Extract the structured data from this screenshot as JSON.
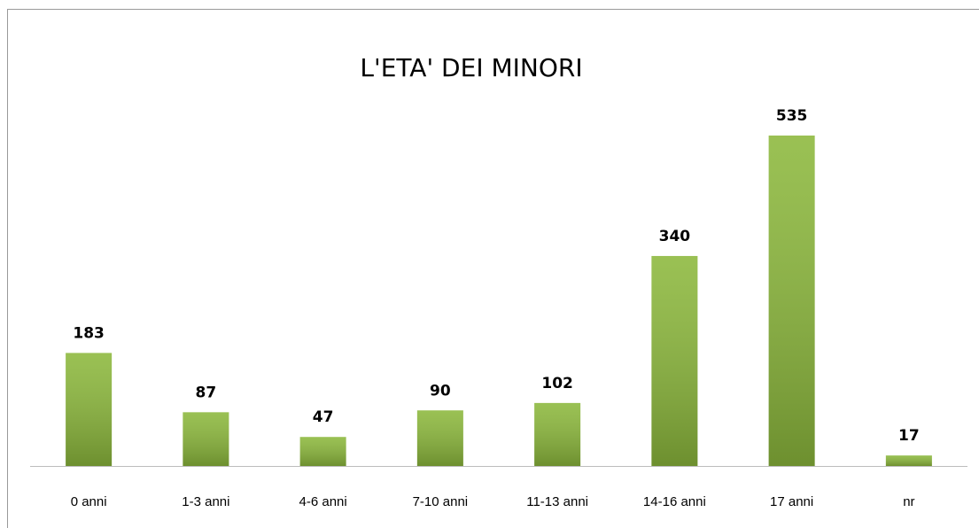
{
  "chart_data": {
    "type": "bar",
    "title": "L'ETA' DEI MINORI",
    "categories": [
      "0 anni",
      "1-3 anni",
      "4-6 anni",
      "7-10 anni",
      "11-13 anni",
      "14-16 anni",
      "17 anni",
      "nr"
    ],
    "values": [
      183,
      87,
      47,
      90,
      102,
      340,
      535,
      17
    ],
    "color": "#8cb83c"
  }
}
